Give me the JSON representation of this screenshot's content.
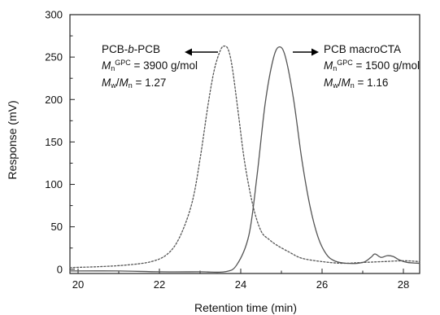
{
  "chart_data": {
    "type": "line",
    "xlabel": "Retention time (min)",
    "ylabel": "Response (mV)",
    "xlim": [
      19.8,
      28.4
    ],
    "ylim": [
      -5,
      300
    ],
    "x_ticks": [
      20,
      22,
      24,
      26,
      28
    ],
    "y_ticks": [
      0,
      50,
      100,
      150,
      200,
      250,
      300
    ],
    "series": [
      {
        "name": "PCB-b-PCB",
        "style": "dotted",
        "color": "#555555",
        "x": [
          19.8,
          20.5,
          21.2,
          21.8,
          22.2,
          22.5,
          22.8,
          23.0,
          23.2,
          23.35,
          23.5,
          23.6,
          23.7,
          23.8,
          23.95,
          24.1,
          24.3,
          24.5,
          24.7,
          24.9,
          25.2,
          25.5,
          26.0,
          26.5,
          27.0,
          27.5,
          28.0,
          28.4
        ],
        "y": [
          2,
          3,
          5,
          9,
          18,
          38,
          78,
          130,
          195,
          235,
          258,
          263,
          258,
          235,
          180,
          125,
          75,
          45,
          35,
          28,
          20,
          13,
          9,
          7,
          8,
          9,
          10,
          9
        ]
      },
      {
        "name": "PCB macroCTA",
        "style": "solid",
        "color": "#555555",
        "x": [
          19.8,
          21.0,
          22.0,
          23.0,
          23.6,
          23.9,
          24.2,
          24.4,
          24.6,
          24.8,
          24.95,
          25.1,
          25.3,
          25.5,
          25.7,
          25.9,
          26.1,
          26.3,
          26.6,
          27.0,
          27.2,
          27.3,
          27.45,
          27.6,
          27.75,
          27.9,
          28.1,
          28.4
        ],
        "y": [
          -2,
          -2,
          -3,
          -3,
          -3,
          5,
          40,
          110,
          195,
          248,
          262,
          250,
          200,
          130,
          75,
          38,
          18,
          10,
          7,
          8,
          14,
          18,
          14,
          16,
          15,
          11,
          8,
          7
        ]
      }
    ],
    "annotations": {
      "left": {
        "title": "PCB-b-PCB",
        "title_pre": "PCB-",
        "title_italic": "b",
        "title_post": "-PCB",
        "mn_symbol": "M",
        "mn_sub": "n",
        "mn_sup": "GPC",
        "mn_value": " = 3900 g/mol",
        "pdi_num_symbol": "M",
        "pdi_num_sub": "w",
        "pdi_slash": "/",
        "pdi_den_symbol": "M",
        "pdi_den_sub": "n",
        "pdi_value": " = 1.27",
        "arrow": "left"
      },
      "right": {
        "title": "PCB macroCTA",
        "mn_symbol": "M",
        "mn_sub": "n",
        "mn_sup": "GPC",
        "mn_value": " = 1500 g/mol",
        "pdi_num_symbol": "M",
        "pdi_num_sub": "w",
        "pdi_slash": "/",
        "pdi_den_symbol": "M",
        "pdi_den_sub": "n",
        "pdi_value": " = 1.16",
        "arrow": "right"
      }
    },
    "grid": false
  }
}
